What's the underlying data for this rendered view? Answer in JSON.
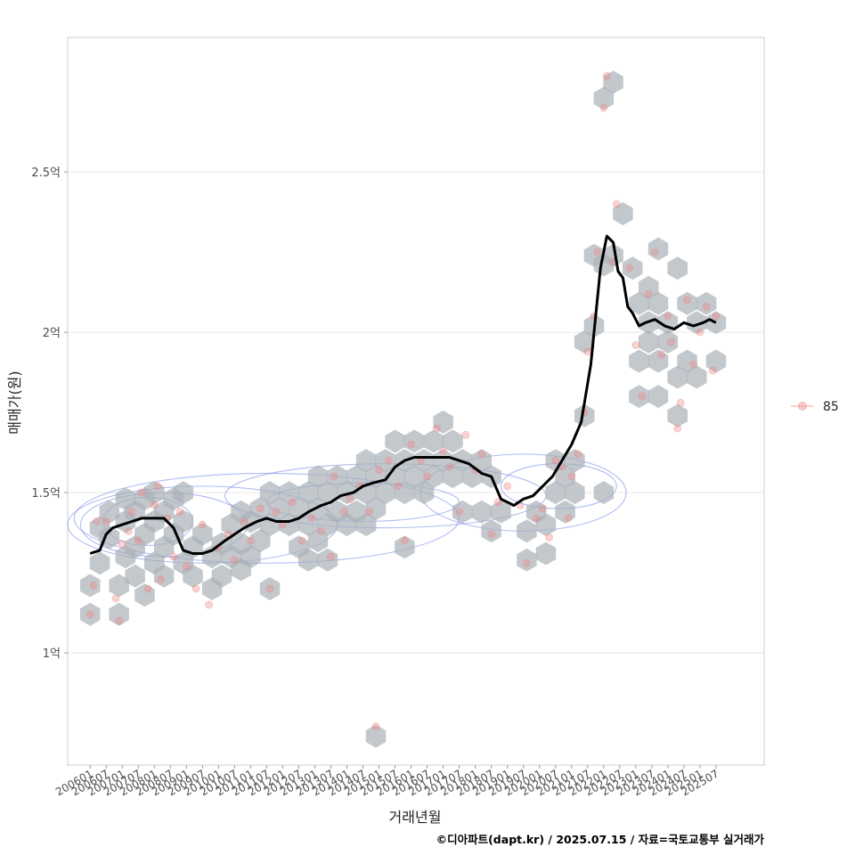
{
  "chart_data": {
    "type": "scatter",
    "xlabel": "거래년월",
    "ylabel": "매매가(원)",
    "caption": "©디아파트(dapt.kr) / 2025.07.15 / 자료=국토교통부 실거래가",
    "legend": {
      "position": "right",
      "label": "85",
      "color": "#f08080"
    },
    "ylim": [
      0.65,
      2.92
    ],
    "yticks": [
      {
        "value": 1.0,
        "label": "1억"
      },
      {
        "value": 1.5,
        "label": "1.5억"
      },
      {
        "value": 2.0,
        "label": "2억"
      },
      {
        "value": 2.5,
        "label": "2.5억"
      }
    ],
    "xlim": [
      2005.3,
      2027.0
    ],
    "xticks": [
      "200601",
      "200607",
      "200701",
      "200707",
      "200801",
      "200807",
      "200901",
      "200907",
      "201001",
      "201007",
      "201101",
      "201107",
      "201201",
      "201207",
      "201301",
      "201307",
      "201401",
      "201407",
      "201501",
      "201507",
      "201601",
      "201607",
      "201701",
      "201707",
      "201801",
      "201807",
      "201901",
      "201907",
      "202001",
      "202007",
      "202101",
      "202107",
      "202201",
      "202207",
      "202301",
      "202307",
      "202401",
      "202407",
      "202501",
      "202507"
    ],
    "trend_line": {
      "name": "moving average",
      "x": [
        2006.0,
        2006.3,
        2006.5,
        2006.7,
        2007.0,
        2007.3,
        2007.6,
        2008.0,
        2008.3,
        2008.6,
        2008.9,
        2009.2,
        2009.5,
        2009.8,
        2010.2,
        2010.5,
        2010.8,
        2011.2,
        2011.5,
        2011.8,
        2012.2,
        2012.5,
        2012.8,
        2013.2,
        2013.5,
        2013.8,
        2014.2,
        2014.5,
        2014.8,
        2015.2,
        2015.5,
        2015.8,
        2016.1,
        2016.4,
        2016.8,
        2017.2,
        2017.5,
        2017.8,
        2018.2,
        2018.5,
        2018.8,
        2019.0,
        2019.2,
        2019.5,
        2019.8,
        2020.1,
        2020.4,
        2020.7,
        2021.0,
        2021.3,
        2021.6,
        2021.9,
        2022.1,
        2022.3,
        2022.45,
        2022.6,
        2022.75,
        2022.9,
        2023.1,
        2023.3,
        2023.6,
        2023.9,
        2024.2,
        2024.5,
        2024.8,
        2025.1,
        2025.3,
        2025.5
      ],
      "y": [
        1.31,
        1.32,
        1.37,
        1.39,
        1.4,
        1.41,
        1.42,
        1.42,
        1.42,
        1.39,
        1.32,
        1.31,
        1.31,
        1.32,
        1.35,
        1.37,
        1.39,
        1.41,
        1.42,
        1.41,
        1.41,
        1.42,
        1.44,
        1.46,
        1.47,
        1.49,
        1.5,
        1.52,
        1.53,
        1.54,
        1.58,
        1.6,
        1.61,
        1.61,
        1.61,
        1.61,
        1.6,
        1.59,
        1.56,
        1.55,
        1.48,
        1.47,
        1.46,
        1.48,
        1.49,
        1.52,
        1.55,
        1.6,
        1.65,
        1.72,
        1.9,
        2.2,
        2.3,
        2.28,
        2.19,
        2.17,
        2.08,
        2.06,
        2.02,
        2.03,
        2.04,
        2.02,
        2.01,
        2.03,
        2.02,
        2.03,
        2.04,
        2.03
      ]
    },
    "hexbins": [
      [
        2006.0,
        1.12
      ],
      [
        2006.0,
        1.21
      ],
      [
        2006.3,
        1.28
      ],
      [
        2006.3,
        1.39
      ],
      [
        2006.6,
        1.36
      ],
      [
        2006.6,
        1.44
      ],
      [
        2006.9,
        1.12
      ],
      [
        2006.9,
        1.21
      ],
      [
        2007.1,
        1.3
      ],
      [
        2007.1,
        1.41
      ],
      [
        2007.1,
        1.48
      ],
      [
        2007.4,
        1.24
      ],
      [
        2007.4,
        1.33
      ],
      [
        2007.4,
        1.44
      ],
      [
        2007.7,
        1.18
      ],
      [
        2007.7,
        1.37
      ],
      [
        2007.7,
        1.48
      ],
      [
        2008.0,
        1.28
      ],
      [
        2008.0,
        1.41
      ],
      [
        2008.0,
        1.5
      ],
      [
        2008.3,
        1.24
      ],
      [
        2008.3,
        1.33
      ],
      [
        2008.3,
        1.44
      ],
      [
        2008.6,
        1.37
      ],
      [
        2008.6,
        1.48
      ],
      [
        2008.9,
        1.28
      ],
      [
        2008.9,
        1.41
      ],
      [
        2008.9,
        1.5
      ],
      [
        2009.2,
        1.24
      ],
      [
        2009.2,
        1.33
      ],
      [
        2009.5,
        1.37
      ],
      [
        2009.8,
        1.2
      ],
      [
        2009.8,
        1.3
      ],
      [
        2010.1,
        1.24
      ],
      [
        2010.1,
        1.34
      ],
      [
        2010.4,
        1.3
      ],
      [
        2010.4,
        1.4
      ],
      [
        2010.7,
        1.26
      ],
      [
        2010.7,
        1.34
      ],
      [
        2010.7,
        1.44
      ],
      [
        2011.0,
        1.3
      ],
      [
        2011.0,
        1.41
      ],
      [
        2011.3,
        1.35
      ],
      [
        2011.3,
        1.45
      ],
      [
        2011.6,
        1.2
      ],
      [
        2011.6,
        1.4
      ],
      [
        2011.6,
        1.5
      ],
      [
        2011.9,
        1.45
      ],
      [
        2012.2,
        1.4
      ],
      [
        2012.2,
        1.5
      ],
      [
        2012.5,
        1.33
      ],
      [
        2012.5,
        1.45
      ],
      [
        2012.8,
        1.29
      ],
      [
        2012.8,
        1.4
      ],
      [
        2012.8,
        1.5
      ],
      [
        2013.1,
        1.35
      ],
      [
        2013.1,
        1.45
      ],
      [
        2013.1,
        1.55
      ],
      [
        2013.4,
        1.29
      ],
      [
        2013.4,
        1.4
      ],
      [
        2013.4,
        1.5
      ],
      [
        2013.7,
        1.44
      ],
      [
        2013.7,
        1.55
      ],
      [
        2014.0,
        1.4
      ],
      [
        2014.0,
        1.5
      ],
      [
        2014.3,
        1.44
      ],
      [
        2014.3,
        1.55
      ],
      [
        2014.6,
        1.4
      ],
      [
        2014.6,
        1.5
      ],
      [
        2014.6,
        1.6
      ],
      [
        2014.9,
        1.45
      ],
      [
        2014.9,
        1.55
      ],
      [
        2014.9,
        0.74
      ],
      [
        2015.2,
        1.5
      ],
      [
        2015.2,
        1.6
      ],
      [
        2015.5,
        1.55
      ],
      [
        2015.5,
        1.66
      ],
      [
        2015.8,
        1.33
      ],
      [
        2015.8,
        1.5
      ],
      [
        2015.8,
        1.6
      ],
      [
        2016.1,
        1.55
      ],
      [
        2016.1,
        1.66
      ],
      [
        2016.4,
        1.6
      ],
      [
        2016.4,
        1.5
      ],
      [
        2016.7,
        1.55
      ],
      [
        2016.7,
        1.66
      ],
      [
        2017.0,
        1.6
      ],
      [
        2017.0,
        1.72
      ],
      [
        2017.3,
        1.55
      ],
      [
        2017.3,
        1.66
      ],
      [
        2017.6,
        1.44
      ],
      [
        2017.6,
        1.6
      ],
      [
        2017.9,
        1.55
      ],
      [
        2018.2,
        1.44
      ],
      [
        2018.2,
        1.6
      ],
      [
        2018.5,
        1.38
      ],
      [
        2018.5,
        1.55
      ],
      [
        2018.8,
        1.44
      ],
      [
        2019.6,
        1.29
      ],
      [
        2019.6,
        1.38
      ],
      [
        2019.9,
        1.44
      ],
      [
        2020.2,
        1.31
      ],
      [
        2020.2,
        1.4
      ],
      [
        2020.5,
        1.5
      ],
      [
        2020.5,
        1.6
      ],
      [
        2020.8,
        1.44
      ],
      [
        2020.8,
        1.55
      ],
      [
        2021.1,
        1.6
      ],
      [
        2021.1,
        1.5
      ],
      [
        2021.4,
        1.74
      ],
      [
        2021.4,
        1.97
      ],
      [
        2021.7,
        2.02
      ],
      [
        2021.7,
        2.24
      ],
      [
        2022.0,
        1.5
      ],
      [
        2022.0,
        2.21
      ],
      [
        2022.0,
        2.73
      ],
      [
        2022.3,
        2.78
      ],
      [
        2022.3,
        2.24
      ],
      [
        2022.6,
        2.37
      ],
      [
        2022.9,
        2.2
      ],
      [
        2023.1,
        2.09
      ],
      [
        2023.1,
        1.91
      ],
      [
        2023.1,
        1.8
      ],
      [
        2023.4,
        2.03
      ],
      [
        2023.4,
        2.14
      ],
      [
        2023.4,
        1.97
      ],
      [
        2023.7,
        2.26
      ],
      [
        2023.7,
        2.09
      ],
      [
        2023.7,
        1.91
      ],
      [
        2023.7,
        1.8
      ],
      [
        2024.0,
        2.03
      ],
      [
        2024.0,
        1.97
      ],
      [
        2024.3,
        2.2
      ],
      [
        2024.3,
        1.86
      ],
      [
        2024.3,
        1.74
      ],
      [
        2024.6,
        2.09
      ],
      [
        2024.6,
        1.91
      ],
      [
        2024.9,
        2.03
      ],
      [
        2024.9,
        1.86
      ],
      [
        2025.2,
        2.09
      ],
      [
        2025.5,
        2.03
      ],
      [
        2025.5,
        1.91
      ]
    ],
    "points_sample": [
      [
        2006.0,
        1.12
      ],
      [
        2006.1,
        1.21
      ],
      [
        2006.2,
        1.41
      ],
      [
        2006.5,
        1.41
      ],
      [
        2006.8,
        1.17
      ],
      [
        2006.9,
        1.1
      ],
      [
        2007.0,
        1.34
      ],
      [
        2007.2,
        1.38
      ],
      [
        2007.3,
        1.44
      ],
      [
        2007.5,
        1.35
      ],
      [
        2007.6,
        1.5
      ],
      [
        2007.8,
        1.2
      ],
      [
        2008.0,
        1.46
      ],
      [
        2008.1,
        1.52
      ],
      [
        2008.2,
        1.23
      ],
      [
        2008.4,
        1.42
      ],
      [
        2008.6,
        1.3
      ],
      [
        2008.8,
        1.44
      ],
      [
        2009.0,
        1.27
      ],
      [
        2009.3,
        1.2
      ],
      [
        2009.5,
        1.4
      ],
      [
        2009.7,
        1.15
      ],
      [
        2010.0,
        1.33
      ],
      [
        2010.3,
        1.37
      ],
      [
        2010.5,
        1.29
      ],
      [
        2010.8,
        1.41
      ],
      [
        2011.0,
        1.35
      ],
      [
        2011.3,
        1.45
      ],
      [
        2011.6,
        1.2
      ],
      [
        2011.8,
        1.44
      ],
      [
        2012.0,
        1.4
      ],
      [
        2012.3,
        1.47
      ],
      [
        2012.6,
        1.35
      ],
      [
        2012.9,
        1.42
      ],
      [
        2013.2,
        1.38
      ],
      [
        2013.5,
        1.3
      ],
      [
        2013.6,
        1.55
      ],
      [
        2013.9,
        1.44
      ],
      [
        2014.1,
        1.48
      ],
      [
        2014.4,
        1.52
      ],
      [
        2014.7,
        1.44
      ],
      [
        2014.9,
        0.77
      ],
      [
        2015.0,
        1.57
      ],
      [
        2015.3,
        1.6
      ],
      [
        2015.6,
        1.52
      ],
      [
        2015.8,
        1.35
      ],
      [
        2016.0,
        1.65
      ],
      [
        2016.3,
        1.6
      ],
      [
        2016.5,
        1.55
      ],
      [
        2016.8,
        1.7
      ],
      [
        2017.0,
        1.63
      ],
      [
        2017.2,
        1.58
      ],
      [
        2017.5,
        1.44
      ],
      [
        2017.7,
        1.68
      ],
      [
        2018.0,
        1.57
      ],
      [
        2018.2,
        1.62
      ],
      [
        2018.5,
        1.37
      ],
      [
        2018.7,
        1.47
      ],
      [
        2019.0,
        1.52
      ],
      [
        2019.4,
        1.46
      ],
      [
        2019.6,
        1.28
      ],
      [
        2019.9,
        1.42
      ],
      [
        2020.1,
        1.45
      ],
      [
        2020.3,
        1.36
      ],
      [
        2020.5,
        1.6
      ],
      [
        2020.7,
        1.58
      ],
      [
        2020.9,
        1.42
      ],
      [
        2021.0,
        1.55
      ],
      [
        2021.2,
        1.62
      ],
      [
        2021.4,
        1.75
      ],
      [
        2021.5,
        1.94
      ],
      [
        2021.7,
        2.05
      ],
      [
        2021.8,
        2.25
      ],
      [
        2022.0,
        2.7
      ],
      [
        2022.1,
        2.8
      ],
      [
        2022.3,
        2.22
      ],
      [
        2022.4,
        2.4
      ],
      [
        2022.8,
        2.2
      ],
      [
        2023.0,
        1.96
      ],
      [
        2023.2,
        1.8
      ],
      [
        2023.4,
        2.12
      ],
      [
        2023.6,
        2.25
      ],
      [
        2023.8,
        1.93
      ],
      [
        2024.0,
        2.05
      ],
      [
        2024.1,
        1.97
      ],
      [
        2024.3,
        1.7
      ],
      [
        2024.4,
        1.78
      ],
      [
        2024.6,
        2.1
      ],
      [
        2024.8,
        1.9
      ],
      [
        2025.0,
        2.0
      ],
      [
        2025.2,
        2.08
      ],
      [
        2025.4,
        1.88
      ],
      [
        2025.5,
        2.05
      ]
    ],
    "density_contours": [
      {
        "cx": 2007.8,
        "cy": 1.41,
        "rx": 1.4,
        "ry": 0.075
      },
      {
        "cx": 2008.3,
        "cy": 1.4,
        "rx": 2.6,
        "ry": 0.1
      },
      {
        "cx": 2009.5,
        "cy": 1.4,
        "rx": 4.2,
        "ry": 0.12
      },
      {
        "cx": 2011.5,
        "cy": 1.42,
        "rx": 6.0,
        "ry": 0.14
      },
      {
        "cx": 2014.5,
        "cy": 1.47,
        "rx": 3.0,
        "ry": 0.06
      },
      {
        "cx": 2015.2,
        "cy": 1.49,
        "rx": 5.0,
        "ry": 0.1
      },
      {
        "cx": 2019.5,
        "cy": 1.5,
        "rx": 3.2,
        "ry": 0.12
      },
      {
        "cx": 2020.6,
        "cy": 1.52,
        "rx": 1.8,
        "ry": 0.07
      }
    ]
  }
}
